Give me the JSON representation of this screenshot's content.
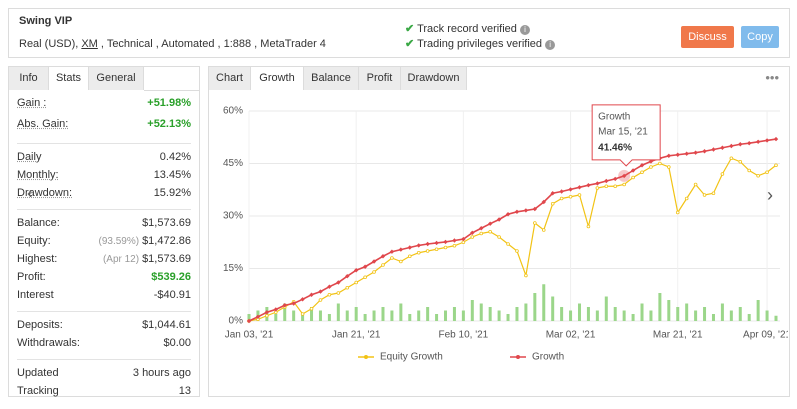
{
  "header": {
    "title": "Swing VIP",
    "subtitle_parts": [
      "Real (USD), ",
      "XM",
      " , Technical , Automated , 1:888 , MetaTrader 4"
    ],
    "verified": [
      "Track record verified",
      "Trading privileges verified"
    ],
    "buttons": [
      "Discuss",
      "Copy"
    ]
  },
  "left_tabs": [
    "Info",
    "Stats",
    "General"
  ],
  "left_active": 1,
  "stats": [
    [
      {
        "label": "Gain :",
        "value": "+51.98%",
        "color": "#2aa02a"
      },
      {
        "label": "Abs. Gain:",
        "value": "+52.13%",
        "color": "#2aa02a"
      }
    ],
    [
      {
        "label": "Daily",
        "value": "0.42%"
      },
      {
        "label": "Monthly:",
        "value": "13.45%"
      },
      {
        "label": "Drawdown:",
        "value": "15.92%"
      }
    ],
    [
      {
        "label": "Balance:",
        "value": "$1,573.69"
      },
      {
        "label": "Equity:",
        "note": "(93.59%)",
        "value": "$1,472.86"
      },
      {
        "label": "Highest:",
        "note": "(Apr 12)",
        "value": "$1,573.69"
      },
      {
        "label": "Profit:",
        "value": "$539.26",
        "color": "#2aa02a"
      },
      {
        "label": "Interest",
        "value": "-$40.91"
      }
    ],
    [
      {
        "label": "Deposits:",
        "value": "$1,044.61"
      },
      {
        "label": "Withdrawals:",
        "value": "$0.00"
      }
    ],
    [
      {
        "label": "Updated",
        "value": "3 hours ago"
      },
      {
        "label": "Tracking",
        "value": "13"
      }
    ]
  ],
  "chart_tabs": [
    "Chart",
    "Growth",
    "Balance",
    "Profit",
    "Drawdown"
  ],
  "chart_active": 1,
  "chart_data": {
    "type": "line",
    "categories": [
      "Jan 03, '21",
      null,
      null,
      null,
      null,
      null,
      null,
      null,
      null,
      null,
      null,
      null,
      "Jan 21, '21",
      null,
      null,
      null,
      null,
      null,
      null,
      null,
      null,
      null,
      null,
      null,
      "Feb 10, '21",
      null,
      null,
      null,
      null,
      null,
      null,
      null,
      null,
      null,
      null,
      null,
      "Mar 02, '21",
      null,
      null,
      null,
      null,
      null,
      null,
      null,
      null,
      null,
      null,
      null,
      "Mar 21, '21",
      null,
      null,
      null,
      null,
      null,
      null,
      null,
      null,
      null,
      "Apr 09, '21",
      null
    ],
    "ylim": [
      0,
      60
    ],
    "yticks": [
      {
        "value": 0,
        "label": "0%"
      },
      {
        "value": 15,
        "label": "15%"
      },
      {
        "value": 30,
        "label": "30%"
      },
      {
        "value": 45,
        "label": "45%"
      },
      {
        "value": 60,
        "label": "60%"
      }
    ],
    "grid": true,
    "bars": {
      "color": "#9bd68a",
      "values": [
        2,
        3,
        4,
        2,
        5,
        3,
        2,
        4,
        3,
        2,
        5,
        3,
        4,
        2,
        3,
        4,
        3,
        5,
        2,
        3,
        4,
        2,
        3,
        4,
        3,
        6,
        5,
        4,
        3,
        2,
        4,
        5,
        8,
        10.5,
        7,
        4,
        3,
        5,
        4,
        3,
        7,
        4,
        3,
        2,
        5,
        3,
        8,
        6,
        4,
        5,
        3,
        4,
        2,
        5,
        3,
        4,
        2,
        6,
        3,
        1.5
      ]
    },
    "series": [
      {
        "name": "Equity Growth",
        "color": "#f2c315",
        "values": [
          0,
          0.5,
          1.5,
          2.5,
          4.0,
          5.5,
          2.0,
          3.5,
          6.0,
          7.5,
          8.0,
          9.5,
          11.0,
          12.5,
          14.0,
          16.0,
          18.0,
          17.0,
          18.5,
          19.5,
          20.0,
          20.5,
          21.0,
          21.5,
          22.5,
          24.0,
          25.0,
          25.5,
          24.0,
          22.0,
          20.0,
          13.0,
          28.0,
          26.0,
          33.5,
          35.0,
          35.5,
          36.0,
          27.0,
          38.0,
          38.5,
          38.5,
          39.0,
          41.0,
          42.5,
          44.0,
          45.0,
          44.0,
          31.0,
          35.0,
          39.0,
          36.0,
          36.5,
          42.0,
          46.5,
          45.5,
          43.0,
          41.5,
          42.5,
          44.5
        ]
      },
      {
        "name": "Growth",
        "color": "#e0474c",
        "values": [
          0,
          1.2,
          2.5,
          3.3,
          4.5,
          5.0,
          6.2,
          7.5,
          8.4,
          9.8,
          11.0,
          12.8,
          14.5,
          15.5,
          17.0,
          18.5,
          19.8,
          20.4,
          21.0,
          21.6,
          22.0,
          22.3,
          22.6,
          23.0,
          23.4,
          25.2,
          26.5,
          27.8,
          29.0,
          30.5,
          31.2,
          31.6,
          32.0,
          34.0,
          36.5,
          37.0,
          37.6,
          38.2,
          38.8,
          39.3,
          40.0,
          40.6,
          41.46,
          43.0,
          44.5,
          45.6,
          46.5,
          47.2,
          47.5,
          47.8,
          48.1,
          48.5,
          49.0,
          49.5,
          50.0,
          50.5,
          50.8,
          51.2,
          51.6,
          51.98
        ]
      }
    ],
    "tooltip": {
      "title": "Growth",
      "date": "Mar 15, '21",
      "value": 41.46,
      "value_label": "41.46%"
    }
  }
}
